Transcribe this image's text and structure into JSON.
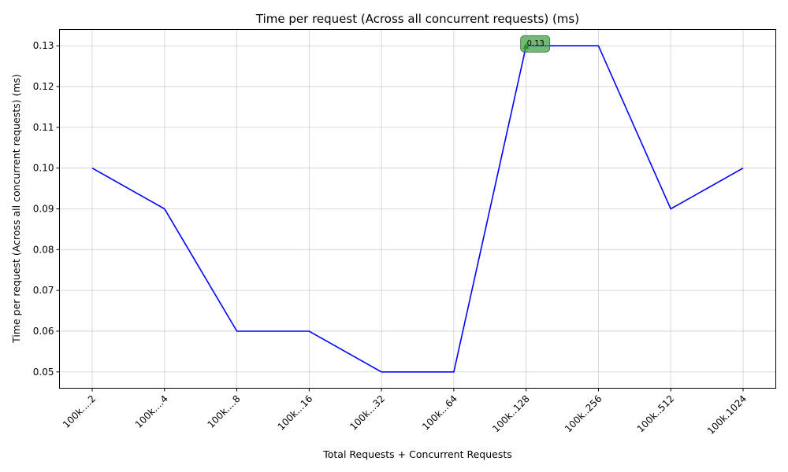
{
  "chart_data": {
    "type": "line",
    "title": "Time per request (Across all concurrent requests) (ms)",
    "xlabel": "Total Requests + Concurrent Requests",
    "ylabel": "Time per request (Across all concurrent requests) (ms)",
    "categories": [
      "100k....2",
      "100k....4",
      "100k....8",
      "100k...16",
      "100k...32",
      "100k...64",
      "100k..128",
      "100k..256",
      "100k..512",
      "100k.1024"
    ],
    "series": [
      {
        "name": "Time per request",
        "color": "#0000ff",
        "values": [
          0.1,
          0.09,
          0.06,
          0.06,
          0.05,
          0.05,
          0.13,
          0.13,
          0.09,
          0.1
        ]
      }
    ],
    "ylim": [
      0.046,
      0.134
    ],
    "yticks": [
      0.05,
      0.06,
      0.07,
      0.08,
      0.09,
      0.1,
      0.11,
      0.12,
      0.13
    ],
    "ytick_labels": [
      "0.05",
      "0.06",
      "0.07",
      "0.08",
      "0.09",
      "0.10",
      "0.11",
      "0.12",
      "0.13"
    ],
    "grid": true,
    "annotation": {
      "category_index": 6,
      "value": 0.13,
      "label": "0.13",
      "color": "#3c9b3c"
    }
  }
}
